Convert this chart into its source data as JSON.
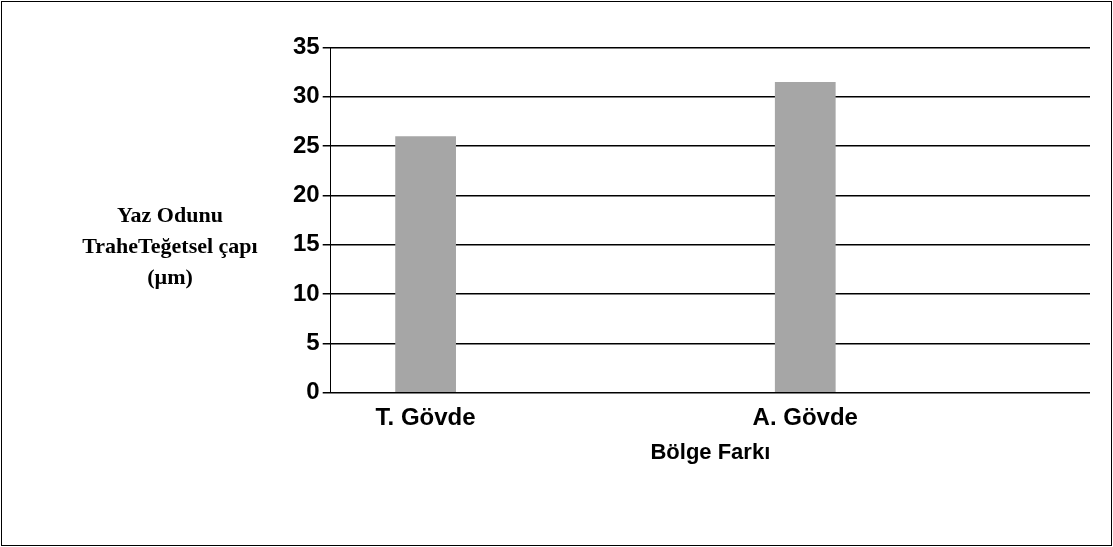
{
  "chart_data": {
    "type": "bar",
    "xlabel": "Bölge Farkı",
    "ylabel": "Yaz Odunu TraheTeğetsel çapı (µm)",
    "categories": [
      "T. Gövde",
      null,
      "A. Gövde",
      null
    ],
    "values": [
      26,
      null,
      31.5,
      null
    ],
    "color": "#a6a6a6",
    "ylim": [
      0,
      35
    ],
    "yticks": [
      0,
      5,
      10,
      15,
      20,
      25,
      30,
      35
    ],
    "grid": "y"
  }
}
